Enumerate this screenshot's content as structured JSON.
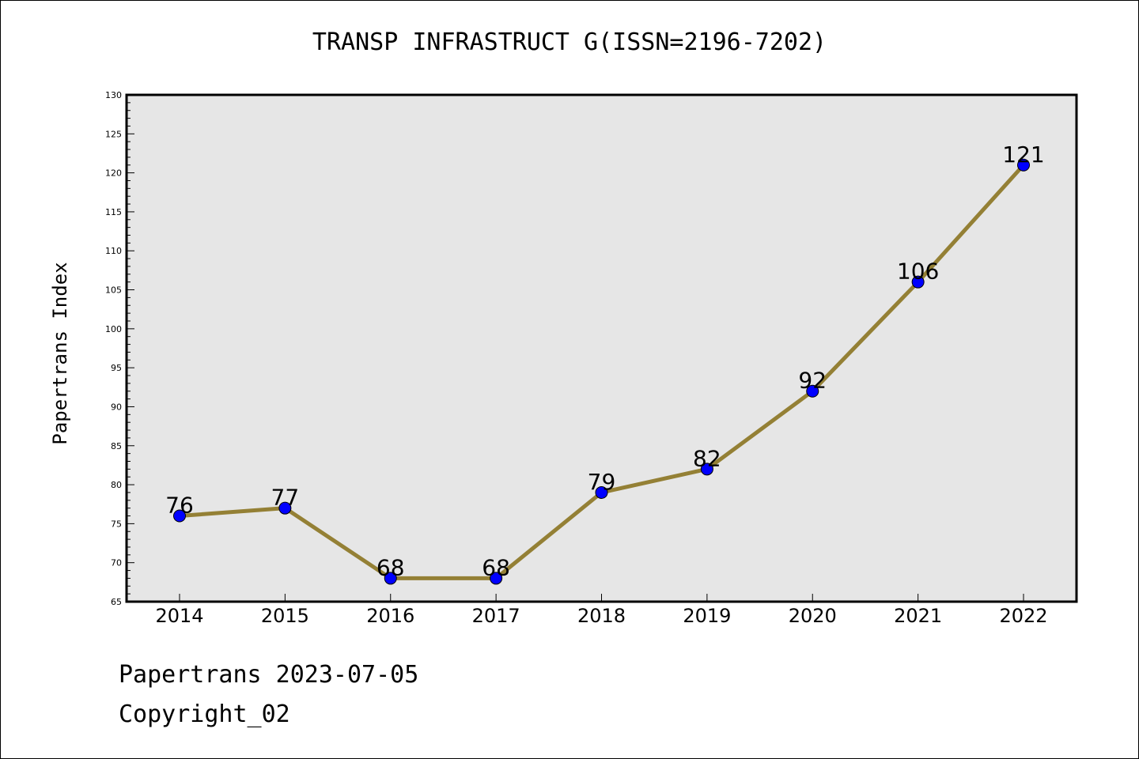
{
  "chart_data": {
    "type": "line",
    "title": "TRANSP INFRASTRUCT G(ISSN=2196-7202)",
    "xlabel": "",
    "ylabel": "Papertrans Index",
    "categories": [
      "2014",
      "2015",
      "2016",
      "2017",
      "2018",
      "2019",
      "2020",
      "2021",
      "2022"
    ],
    "series": [
      {
        "values": [
          76,
          77,
          68,
          68,
          79,
          82,
          92,
          106,
          121
        ],
        "line_color": "#948035",
        "marker_color": "#0000ff"
      }
    ],
    "ylim": [
      65,
      130
    ],
    "yticks": [
      65,
      70,
      75,
      80,
      85,
      90,
      95,
      100,
      105,
      110,
      115,
      120,
      125,
      130
    ],
    "grid": false,
    "legend": "none",
    "plot_background": "#e6e6e6",
    "data_labels": [
      "76",
      "77",
      "68",
      "68",
      "79",
      "82",
      "92",
      "106",
      "121"
    ]
  },
  "footer": {
    "date_text": "Papertrans 2023-07-05",
    "copyright_text": "Copyright_02"
  }
}
